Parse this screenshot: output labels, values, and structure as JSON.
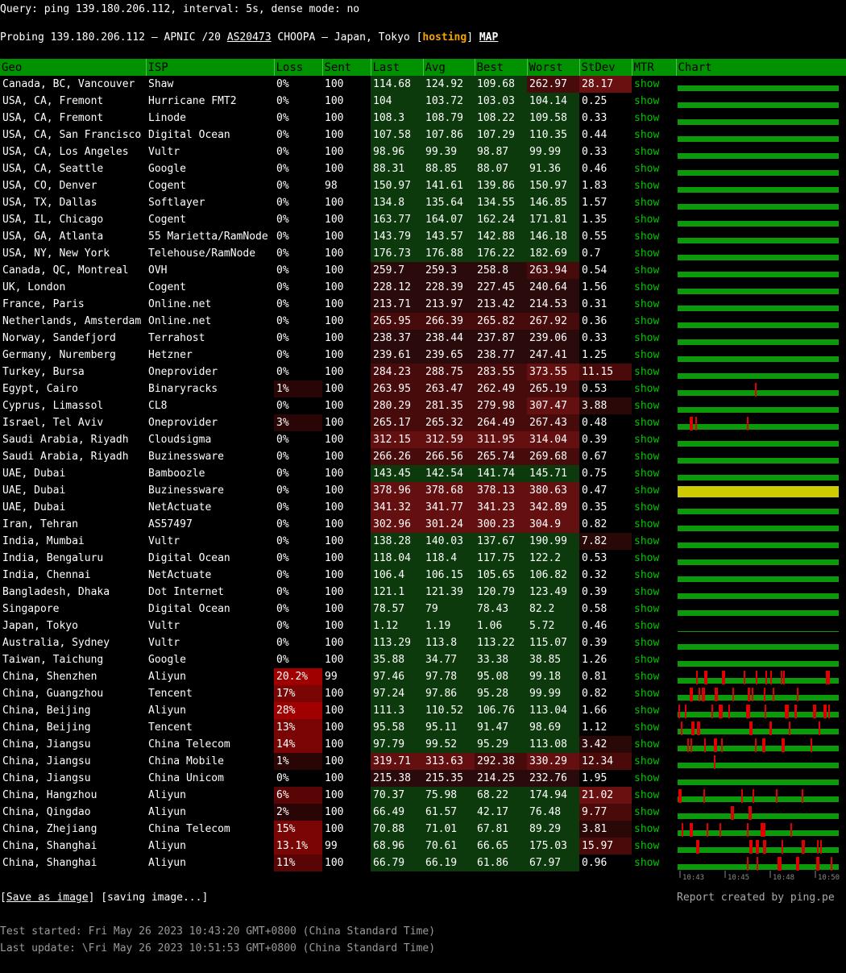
{
  "header": {
    "query": "Query: ping 139.180.206.112, interval: 5s, dense mode: no",
    "probe_prefix": "Probing 139.180.206.112 – APNIC /20 ",
    "asn": "AS20473",
    "probe_mid": " CHOOPA – Japan, Tokyo [",
    "hosting": "hosting",
    "probe_close": "] ",
    "map": "MAP"
  },
  "columns": [
    "Geo",
    "ISP",
    "Loss",
    "Sent",
    "Last",
    "Avg",
    "Best",
    "Worst",
    "StDev",
    "MTR",
    "Chart"
  ],
  "rows": [
    {
      "geo": "Canada, BC, Vancouver",
      "isp": "Shaw",
      "loss": "0%",
      "sent": "100",
      "last": "114.68",
      "avg": "124.92",
      "best": "109.68",
      "worst": "262.97",
      "stdev": "28.17",
      "mtr": "show"
    },
    {
      "geo": "USA, CA, Fremont",
      "isp": "Hurricane FMT2",
      "loss": "0%",
      "sent": "100",
      "last": "104",
      "avg": "103.72",
      "best": "103.03",
      "worst": "104.14",
      "stdev": "0.25",
      "mtr": "show"
    },
    {
      "geo": "USA, CA, Fremont",
      "isp": "Linode",
      "loss": "0%",
      "sent": "100",
      "last": "108.3",
      "avg": "108.79",
      "best": "108.22",
      "worst": "109.58",
      "stdev": "0.33",
      "mtr": "show"
    },
    {
      "geo": "USA, CA, San Francisco",
      "isp": "Digital Ocean",
      "loss": "0%",
      "sent": "100",
      "last": "107.58",
      "avg": "107.86",
      "best": "107.29",
      "worst": "110.35",
      "stdev": "0.44",
      "mtr": "show"
    },
    {
      "geo": "USA, CA, Los Angeles",
      "isp": "Vultr",
      "loss": "0%",
      "sent": "100",
      "last": "98.96",
      "avg": "99.39",
      "best": "98.87",
      "worst": "99.99",
      "stdev": "0.33",
      "mtr": "show"
    },
    {
      "geo": "USA, CA, Seattle",
      "isp": "Google",
      "loss": "0%",
      "sent": "100",
      "last": "88.31",
      "avg": "88.85",
      "best": "88.07",
      "worst": "91.36",
      "stdev": "0.46",
      "mtr": "show"
    },
    {
      "geo": "USA, CO, Denver",
      "isp": "Cogent",
      "loss": "0%",
      "sent": "98",
      "last": "150.97",
      "avg": "141.61",
      "best": "139.86",
      "worst": "150.97",
      "stdev": "1.83",
      "mtr": "show"
    },
    {
      "geo": "USA, TX, Dallas",
      "isp": "Softlayer",
      "loss": "0%",
      "sent": "100",
      "last": "134.8",
      "avg": "135.64",
      "best": "134.55",
      "worst": "146.85",
      "stdev": "1.57",
      "mtr": "show"
    },
    {
      "geo": "USA, IL, Chicago",
      "isp": "Cogent",
      "loss": "0%",
      "sent": "100",
      "last": "163.77",
      "avg": "164.07",
      "best": "162.24",
      "worst": "171.81",
      "stdev": "1.35",
      "mtr": "show"
    },
    {
      "geo": "USA, GA, Atlanta",
      "isp": "55 Marietta/RamNode",
      "loss": "0%",
      "sent": "100",
      "last": "143.79",
      "avg": "143.57",
      "best": "142.88",
      "worst": "146.18",
      "stdev": "0.55",
      "mtr": "show"
    },
    {
      "geo": "USA, NY, New York",
      "isp": "Telehouse/RamNode",
      "loss": "0%",
      "sent": "100",
      "last": "176.73",
      "avg": "176.88",
      "best": "176.22",
      "worst": "182.69",
      "stdev": "0.7",
      "mtr": "show"
    },
    {
      "geo": "Canada, QC, Montreal",
      "isp": "OVH",
      "loss": "0%",
      "sent": "100",
      "last": "259.7",
      "avg": "259.3",
      "best": "258.8",
      "worst": "263.94",
      "stdev": "0.54",
      "mtr": "show"
    },
    {
      "geo": "UK, London",
      "isp": "Cogent",
      "loss": "0%",
      "sent": "100",
      "last": "228.12",
      "avg": "228.39",
      "best": "227.45",
      "worst": "240.64",
      "stdev": "1.56",
      "mtr": "show"
    },
    {
      "geo": "France, Paris",
      "isp": "Online.net",
      "loss": "0%",
      "sent": "100",
      "last": "213.71",
      "avg": "213.97",
      "best": "213.42",
      "worst": "214.53",
      "stdev": "0.31",
      "mtr": "show"
    },
    {
      "geo": "Netherlands, Amsterdam",
      "isp": "Online.net",
      "loss": "0%",
      "sent": "100",
      "last": "265.95",
      "avg": "266.39",
      "best": "265.82",
      "worst": "267.92",
      "stdev": "0.36",
      "mtr": "show"
    },
    {
      "geo": "Norway, Sandefjord",
      "isp": "Terrahost",
      "loss": "0%",
      "sent": "100",
      "last": "238.37",
      "avg": "238.44",
      "best": "237.87",
      "worst": "239.06",
      "stdev": "0.33",
      "mtr": "show"
    },
    {
      "geo": "Germany, Nuremberg",
      "isp": "Hetzner",
      "loss": "0%",
      "sent": "100",
      "last": "239.61",
      "avg": "239.65",
      "best": "238.77",
      "worst": "247.41",
      "stdev": "1.25",
      "mtr": "show"
    },
    {
      "geo": "Turkey, Bursa",
      "isp": "Oneprovider",
      "loss": "0%",
      "sent": "100",
      "last": "284.23",
      "avg": "288.75",
      "best": "283.55",
      "worst": "373.55",
      "stdev": "11.15",
      "mtr": "show"
    },
    {
      "geo": "Egypt, Cairo",
      "isp": "Binaryracks",
      "loss": "1%",
      "sent": "100",
      "last": "263.95",
      "avg": "263.47",
      "best": "262.49",
      "worst": "265.19",
      "stdev": "0.53",
      "mtr": "show"
    },
    {
      "geo": "Cyprus, Limassol",
      "isp": "CL8",
      "loss": "0%",
      "sent": "100",
      "last": "280.29",
      "avg": "281.35",
      "best": "279.98",
      "worst": "307.47",
      "stdev": "3.88",
      "mtr": "show"
    },
    {
      "geo": "Israel, Tel Aviv",
      "isp": "Oneprovider",
      "loss": "3%",
      "sent": "100",
      "last": "265.17",
      "avg": "265.32",
      "best": "264.49",
      "worst": "267.43",
      "stdev": "0.48",
      "mtr": "show"
    },
    {
      "geo": "Saudi Arabia, Riyadh",
      "isp": "Cloudsigma",
      "loss": "0%",
      "sent": "100",
      "last": "312.15",
      "avg": "312.59",
      "best": "311.95",
      "worst": "314.04",
      "stdev": "0.39",
      "mtr": "show"
    },
    {
      "geo": "Saudi Arabia, Riyadh",
      "isp": "Buzinessware",
      "loss": "0%",
      "sent": "100",
      "last": "266.26",
      "avg": "266.56",
      "best": "265.74",
      "worst": "269.68",
      "stdev": "0.67",
      "mtr": "show"
    },
    {
      "geo": "UAE, Dubai",
      "isp": "Bamboozle",
      "loss": "0%",
      "sent": "100",
      "last": "143.45",
      "avg": "142.54",
      "best": "141.74",
      "worst": "145.71",
      "stdev": "0.75",
      "mtr": "show"
    },
    {
      "geo": "UAE, Dubai",
      "isp": "Buzinessware",
      "loss": "0%",
      "sent": "100",
      "last": "378.96",
      "avg": "378.68",
      "best": "378.13",
      "worst": "380.63",
      "stdev": "0.47",
      "mtr": "show"
    },
    {
      "geo": "UAE, Dubai",
      "isp": "NetActuate",
      "loss": "0%",
      "sent": "100",
      "last": "341.32",
      "avg": "341.77",
      "best": "341.23",
      "worst": "342.89",
      "stdev": "0.35",
      "mtr": "show"
    },
    {
      "geo": "Iran, Tehran",
      "isp": "AS57497",
      "loss": "0%",
      "sent": "100",
      "last": "302.96",
      "avg": "301.24",
      "best": "300.23",
      "worst": "304.9",
      "stdev": "0.82",
      "mtr": "show"
    },
    {
      "geo": "India, Mumbai",
      "isp": "Vultr",
      "loss": "0%",
      "sent": "100",
      "last": "138.28",
      "avg": "140.03",
      "best": "137.67",
      "worst": "190.99",
      "stdev": "7.82",
      "mtr": "show"
    },
    {
      "geo": "India, Bengaluru",
      "isp": "Digital Ocean",
      "loss": "0%",
      "sent": "100",
      "last": "118.04",
      "avg": "118.4",
      "best": "117.75",
      "worst": "122.2",
      "stdev": "0.53",
      "mtr": "show"
    },
    {
      "geo": "India, Chennai",
      "isp": "NetActuate",
      "loss": "0%",
      "sent": "100",
      "last": "106.4",
      "avg": "106.15",
      "best": "105.65",
      "worst": "106.82",
      "stdev": "0.32",
      "mtr": "show"
    },
    {
      "geo": "Bangladesh, Dhaka",
      "isp": "Dot Internet",
      "loss": "0%",
      "sent": "100",
      "last": "121.1",
      "avg": "121.39",
      "best": "120.79",
      "worst": "123.49",
      "stdev": "0.39",
      "mtr": "show"
    },
    {
      "geo": "Singapore",
      "isp": "Digital Ocean",
      "loss": "0%",
      "sent": "100",
      "last": "78.57",
      "avg": "79",
      "best": "78.43",
      "worst": "82.2",
      "stdev": "0.58",
      "mtr": "show"
    },
    {
      "geo": "Japan, Tokyo",
      "isp": "Vultr",
      "loss": "0%",
      "sent": "100",
      "last": "1.12",
      "avg": "1.19",
      "best": "1.06",
      "worst": "5.72",
      "stdev": "0.46",
      "mtr": "show"
    },
    {
      "geo": "Australia, Sydney",
      "isp": "Vultr",
      "loss": "0%",
      "sent": "100",
      "last": "113.29",
      "avg": "113.8",
      "best": "113.22",
      "worst": "115.07",
      "stdev": "0.39",
      "mtr": "show"
    },
    {
      "geo": "Taiwan, Taichung",
      "isp": "Google",
      "loss": "0%",
      "sent": "100",
      "last": "35.88",
      "avg": "34.77",
      "best": "33.38",
      "worst": "38.85",
      "stdev": "1.26",
      "mtr": "show"
    },
    {
      "geo": "China, Shenzhen",
      "isp": "Aliyun",
      "loss": "20.2%",
      "sent": "99",
      "last": "97.46",
      "avg": "97.78",
      "best": "95.08",
      "worst": "99.18",
      "stdev": "0.81",
      "mtr": "show"
    },
    {
      "geo": "China, Guangzhou",
      "isp": "Tencent",
      "loss": "17%",
      "sent": "100",
      "last": "97.24",
      "avg": "97.86",
      "best": "95.28",
      "worst": "99.99",
      "stdev": "0.82",
      "mtr": "show"
    },
    {
      "geo": "China, Beijing",
      "isp": "Aliyun",
      "loss": "28%",
      "sent": "100",
      "last": "111.3",
      "avg": "110.52",
      "best": "106.76",
      "worst": "113.04",
      "stdev": "1.66",
      "mtr": "show"
    },
    {
      "geo": "China, Beijing",
      "isp": "Tencent",
      "loss": "13%",
      "sent": "100",
      "last": "95.58",
      "avg": "95.11",
      "best": "91.47",
      "worst": "98.69",
      "stdev": "1.12",
      "mtr": "show"
    },
    {
      "geo": "China, Jiangsu",
      "isp": "China Telecom",
      "loss": "14%",
      "sent": "100",
      "last": "97.79",
      "avg": "99.52",
      "best": "95.29",
      "worst": "113.08",
      "stdev": "3.42",
      "mtr": "show"
    },
    {
      "geo": "China, Jiangsu",
      "isp": "China Mobile",
      "loss": "1%",
      "sent": "100",
      "last": "319.71",
      "avg": "313.63",
      "best": "292.38",
      "worst": "330.29",
      "stdev": "12.34",
      "mtr": "show"
    },
    {
      "geo": "China, Jiangsu",
      "isp": "China Unicom",
      "loss": "0%",
      "sent": "100",
      "last": "215.38",
      "avg": "215.35",
      "best": "214.25",
      "worst": "232.76",
      "stdev": "1.95",
      "mtr": "show"
    },
    {
      "geo": "China, Hangzhou",
      "isp": "Aliyun",
      "loss": "6%",
      "sent": "100",
      "last": "70.37",
      "avg": "75.98",
      "best": "68.22",
      "worst": "174.94",
      "stdev": "21.02",
      "mtr": "show"
    },
    {
      "geo": "China, Qingdao",
      "isp": "Aliyun",
      "loss": "2%",
      "sent": "100",
      "last": "66.49",
      "avg": "61.57",
      "best": "42.17",
      "worst": "76.48",
      "stdev": "9.77",
      "mtr": "show"
    },
    {
      "geo": "China, Zhejiang",
      "isp": "China Telecom",
      "loss": "15%",
      "sent": "100",
      "last": "70.88",
      "avg": "71.01",
      "best": "67.81",
      "worst": "89.29",
      "stdev": "3.81",
      "mtr": "show"
    },
    {
      "geo": "China, Shanghai",
      "isp": "Aliyun",
      "loss": "13.1%",
      "sent": "99",
      "last": "68.96",
      "avg": "70.61",
      "best": "66.65",
      "worst": "175.03",
      "stdev": "15.97",
      "mtr": "show"
    },
    {
      "geo": "China, Shanghai",
      "isp": "Aliyun",
      "loss": "11%",
      "sent": "100",
      "last": "66.79",
      "avg": "66.19",
      "best": "61.86",
      "worst": "67.97",
      "stdev": "0.96",
      "mtr": "show"
    }
  ],
  "chart_axis": [
    "10:43",
    "10:45",
    "10:48",
    "10:50"
  ],
  "footer": {
    "open": "[",
    "save": "Save as image",
    "close": "] [saving image...]",
    "credit": "Report created by ping.pe",
    "started": "Test started: Fri May 26 2023 10:43:20 GMT+0800 (China Standard Time)",
    "updated": "Last update: \\Fri May 26 2023 10:51:53 GMT+0800 (China Standard Time)"
  },
  "colors": {
    "header_green": "#009200",
    "show_green": "#00c800",
    "hosting": "#f5a300",
    "loss_red": "#a00000",
    "yellow": "#cccc00"
  }
}
